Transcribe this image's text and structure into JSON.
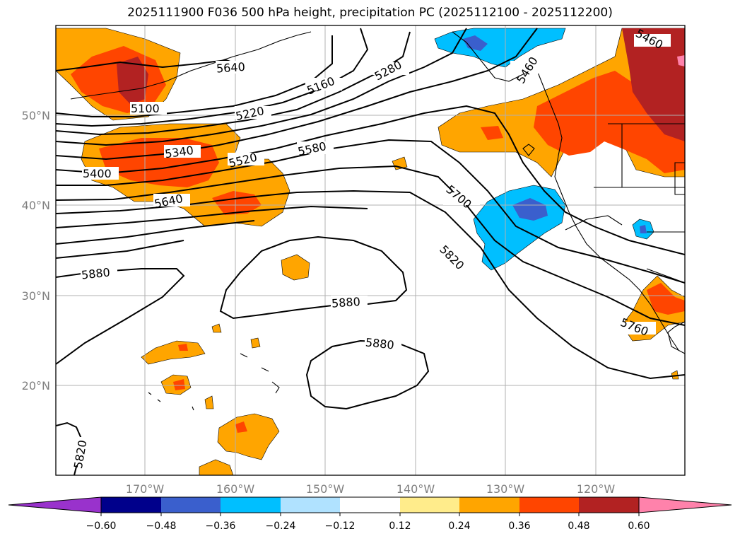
{
  "title": "2025111900 F036 500 hPa height, precipitation PC (2025112100 - 2025112200)",
  "lon_ticks": [
    "170°W",
    "160°W",
    "150°W",
    "140°W",
    "130°W",
    "120°W"
  ],
  "lat_ticks": [
    "50°N",
    "40°N",
    "30°N",
    "20°N"
  ],
  "colorbar": {
    "ticks": [
      "−0.60",
      "−0.48",
      "−0.36",
      "−0.24",
      "−0.12",
      "0.12",
      "0.24",
      "0.36",
      "0.48",
      "0.60"
    ],
    "colors": [
      "#9932cc",
      "#00008b",
      "#3a5fcd",
      "#00bfff",
      "#b0e2ff",
      "#ffffff",
      "#ffec8b",
      "#ffa500",
      "#ff4500",
      "#b22222",
      "#ff82ab"
    ]
  },
  "contour_labels": [
    "5640",
    "5100",
    "5340",
    "5400",
    "5640",
    "5520",
    "5220",
    "5160",
    "5280",
    "5580",
    "5460",
    "5460",
    "5700",
    "5820",
    "5880",
    "5880",
    "5880",
    "5820",
    "5760"
  ],
  "colors": {
    "frame": "#000000",
    "grid": "#b0b0b0",
    "contour": "#000000",
    "coast": "#000000"
  }
}
